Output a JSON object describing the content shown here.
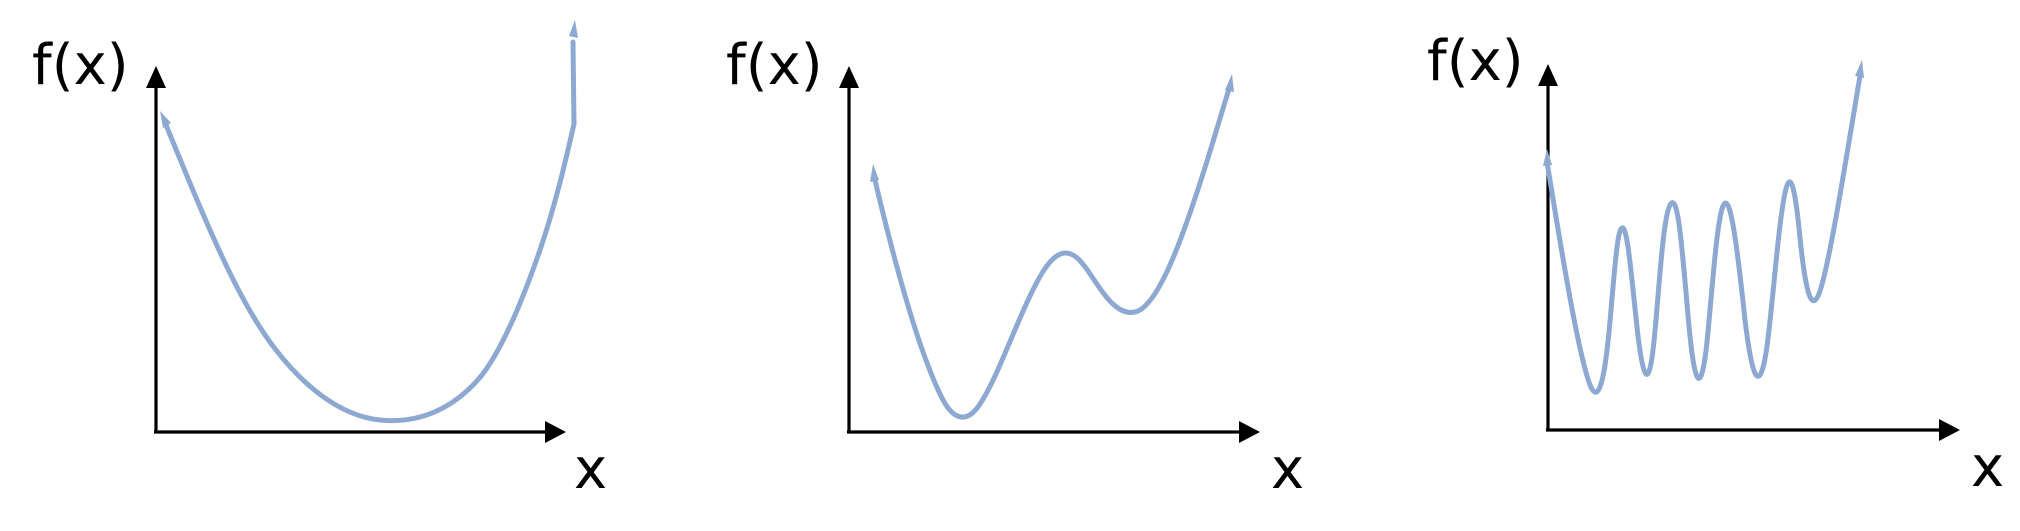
{
  "diagram": {
    "title": "",
    "panels": [
      {
        "name": "convex-function",
        "y_axis_label": "f(x)",
        "x_axis_label": "x"
      },
      {
        "name": "two-minima-function",
        "y_axis_label": "f(x)",
        "x_axis_label": "x"
      },
      {
        "name": "many-minima-function",
        "y_axis_label": "f(x)",
        "x_axis_label": "x"
      }
    ]
  },
  "colors": {
    "curve": "#8ea9d1",
    "axis": "#000000",
    "background": "#ffffff"
  }
}
